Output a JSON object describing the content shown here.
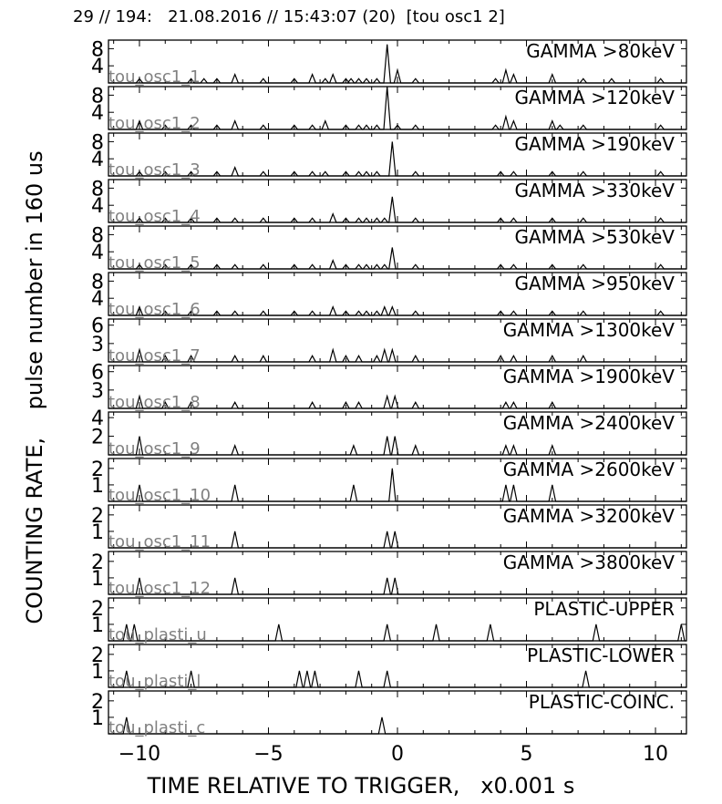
{
  "header": "29 // 194:   21.08.2016 // 15:43:07 (20)  [tou osc1 2]",
  "ylabel": "COUNTING RATE,    pulse number in 160 us",
  "xlabel": "TIME RELATIVE TO TRIGGER,   x0.001 s",
  "colors": {
    "line": "#000000",
    "channel_label": "#808080"
  },
  "chart_data": {
    "type": "line",
    "xlim": [
      -11.2,
      11.2
    ],
    "x_ticks": [
      -10,
      -5,
      0,
      5,
      10
    ],
    "x_tick_labels": [
      "−10",
      "−5",
      "0",
      "5",
      "10"
    ],
    "grid": false,
    "panels": [
      {
        "channel": "tou_osc1_1",
        "label": "GAMMA >80keV",
        "ylim": [
          0,
          10
        ],
        "y_ticks": [
          4,
          8
        ],
        "y_tick_labels": [
          "4",
          "8"
        ],
        "peaks": [
          [
            -10.0,
            1
          ],
          [
            -8.0,
            1
          ],
          [
            -7.5,
            1
          ],
          [
            -7.0,
            1
          ],
          [
            -6.3,
            2
          ],
          [
            -5.2,
            1
          ],
          [
            -4.0,
            1
          ],
          [
            -3.3,
            2
          ],
          [
            -2.8,
            1
          ],
          [
            -2.5,
            2
          ],
          [
            -2.0,
            1
          ],
          [
            -1.8,
            1
          ],
          [
            -1.5,
            1
          ],
          [
            -1.2,
            1
          ],
          [
            -0.8,
            1
          ],
          [
            -0.4,
            9
          ],
          [
            0.0,
            3
          ],
          [
            0.7,
            1
          ],
          [
            3.8,
            1
          ],
          [
            4.2,
            3
          ],
          [
            4.5,
            2
          ],
          [
            6.0,
            2
          ],
          [
            7.2,
            1
          ],
          [
            8.3,
            1
          ],
          [
            10.2,
            1
          ]
        ]
      },
      {
        "channel": "tou_osc1_2",
        "label": "GAMMA >120keV",
        "ylim": [
          0,
          10
        ],
        "y_ticks": [
          4,
          8
        ],
        "y_tick_labels": [
          "4",
          "8"
        ],
        "peaks": [
          [
            -10.0,
            2
          ],
          [
            -9.0,
            1
          ],
          [
            -8.0,
            1
          ],
          [
            -7.0,
            1
          ],
          [
            -6.3,
            2
          ],
          [
            -5.2,
            1
          ],
          [
            -4.0,
            1
          ],
          [
            -3.3,
            1
          ],
          [
            -2.8,
            2
          ],
          [
            -2.0,
            1
          ],
          [
            -1.5,
            1
          ],
          [
            -1.2,
            1
          ],
          [
            -0.8,
            1
          ],
          [
            -0.4,
            10
          ],
          [
            0.0,
            1
          ],
          [
            0.7,
            1
          ],
          [
            3.8,
            1
          ],
          [
            4.2,
            3
          ],
          [
            4.5,
            2
          ],
          [
            6.0,
            2
          ],
          [
            6.3,
            1
          ],
          [
            7.2,
            1
          ],
          [
            10.2,
            1
          ]
        ]
      },
      {
        "channel": "tou_osc1_3",
        "label": "GAMMA >190keV",
        "ylim": [
          0,
          10
        ],
        "y_ticks": [
          4,
          8
        ],
        "y_tick_labels": [
          "4",
          "8"
        ],
        "peaks": [
          [
            -10.0,
            1
          ],
          [
            -9.0,
            1
          ],
          [
            -8.0,
            1
          ],
          [
            -7.0,
            1
          ],
          [
            -6.3,
            2
          ],
          [
            -5.2,
            1
          ],
          [
            -4.0,
            1
          ],
          [
            -3.3,
            1
          ],
          [
            -2.8,
            1
          ],
          [
            -2.0,
            1
          ],
          [
            -1.5,
            1
          ],
          [
            -1.2,
            1
          ],
          [
            -0.8,
            1
          ],
          [
            -0.2,
            8
          ],
          [
            0.7,
            1
          ],
          [
            4.0,
            1
          ],
          [
            4.5,
            1
          ],
          [
            6.0,
            1
          ],
          [
            7.2,
            1
          ],
          [
            10.2,
            1
          ]
        ]
      },
      {
        "channel": "tou_osc1_4",
        "label": "GAMMA >330keV",
        "ylim": [
          0,
          10
        ],
        "y_ticks": [
          4,
          8
        ],
        "y_tick_labels": [
          "4",
          "8"
        ],
        "peaks": [
          [
            -10.0,
            1
          ],
          [
            -9.0,
            1
          ],
          [
            -8.0,
            1
          ],
          [
            -7.0,
            1
          ],
          [
            -6.3,
            1
          ],
          [
            -5.2,
            1
          ],
          [
            -4.0,
            1
          ],
          [
            -3.3,
            1
          ],
          [
            -2.5,
            2
          ],
          [
            -2.0,
            1
          ],
          [
            -1.5,
            1
          ],
          [
            -1.2,
            1
          ],
          [
            -0.8,
            1
          ],
          [
            -0.5,
            1
          ],
          [
            -0.2,
            6
          ],
          [
            0.7,
            1
          ],
          [
            4.0,
            1
          ],
          [
            4.5,
            1
          ],
          [
            6.0,
            1
          ],
          [
            7.2,
            1
          ],
          [
            10.2,
            1
          ]
        ]
      },
      {
        "channel": "tou_osc1_5",
        "label": "GAMMA >530keV",
        "ylim": [
          0,
          10
        ],
        "y_ticks": [
          4,
          8
        ],
        "y_tick_labels": [
          "4",
          "8"
        ],
        "peaks": [
          [
            -10.0,
            1
          ],
          [
            -9.0,
            1
          ],
          [
            -8.0,
            1
          ],
          [
            -7.0,
            1
          ],
          [
            -6.3,
            1
          ],
          [
            -5.2,
            1
          ],
          [
            -4.0,
            1
          ],
          [
            -3.3,
            1
          ],
          [
            -2.5,
            2
          ],
          [
            -2.0,
            1
          ],
          [
            -1.5,
            1
          ],
          [
            -1.2,
            1
          ],
          [
            -0.8,
            1
          ],
          [
            -0.5,
            1
          ],
          [
            -0.2,
            5
          ],
          [
            0.7,
            1
          ],
          [
            4.0,
            1
          ],
          [
            4.5,
            1
          ],
          [
            6.0,
            1
          ],
          [
            7.2,
            1
          ],
          [
            10.2,
            1
          ]
        ]
      },
      {
        "channel": "tou_osc1_6",
        "label": "GAMMA >950keV",
        "ylim": [
          0,
          10
        ],
        "y_ticks": [
          4,
          8
        ],
        "y_tick_labels": [
          "4",
          "8"
        ],
        "peaks": [
          [
            -10.0,
            2
          ],
          [
            -9.0,
            1
          ],
          [
            -8.0,
            1
          ],
          [
            -7.0,
            1
          ],
          [
            -6.3,
            1
          ],
          [
            -5.2,
            1
          ],
          [
            -4.0,
            1
          ],
          [
            -3.3,
            1
          ],
          [
            -2.5,
            2
          ],
          [
            -2.0,
            1
          ],
          [
            -1.5,
            1
          ],
          [
            -1.2,
            1
          ],
          [
            -0.8,
            1
          ],
          [
            -0.5,
            2
          ],
          [
            -0.2,
            2
          ],
          [
            0.7,
            1
          ],
          [
            4.0,
            1
          ],
          [
            4.5,
            1
          ],
          [
            6.0,
            1
          ],
          [
            7.2,
            1
          ],
          [
            10.2,
            1
          ]
        ]
      },
      {
        "channel": "tou_osc1_7",
        "label": "GAMMA >1300keV",
        "ylim": [
          0,
          7
        ],
        "y_ticks": [
          3,
          6
        ],
        "y_tick_labels": [
          "3",
          "6"
        ],
        "peaks": [
          [
            -10.0,
            2
          ],
          [
            -9.0,
            1
          ],
          [
            -8.0,
            1
          ],
          [
            -6.3,
            1
          ],
          [
            -5.2,
            1
          ],
          [
            -3.3,
            1
          ],
          [
            -2.5,
            2
          ],
          [
            -2.0,
            1
          ],
          [
            -1.5,
            1
          ],
          [
            -0.8,
            1
          ],
          [
            -0.5,
            2
          ],
          [
            -0.2,
            2
          ],
          [
            0.7,
            1
          ],
          [
            4.0,
            1
          ],
          [
            4.5,
            1
          ],
          [
            6.0,
            1
          ],
          [
            7.2,
            1
          ]
        ]
      },
      {
        "channel": "tou_osc1_8",
        "label": "GAMMA >1900keV",
        "ylim": [
          0,
          7
        ],
        "y_ticks": [
          3,
          6
        ],
        "y_tick_labels": [
          "3",
          "6"
        ],
        "peaks": [
          [
            -10.0,
            2
          ],
          [
            -9.0,
            1
          ],
          [
            -8.0,
            1
          ],
          [
            -6.3,
            1
          ],
          [
            -3.3,
            1
          ],
          [
            -2.0,
            1
          ],
          [
            -1.5,
            1
          ],
          [
            -0.4,
            2
          ],
          [
            -0.1,
            2
          ],
          [
            0.7,
            1
          ],
          [
            4.2,
            1
          ],
          [
            4.5,
            1
          ],
          [
            6.0,
            1
          ]
        ]
      },
      {
        "channel": "tou_osc1_9",
        "label": "GAMMA >2400keV",
        "ylim": [
          0,
          4.6
        ],
        "y_ticks": [
          2,
          4
        ],
        "y_tick_labels": [
          "2",
          "4"
        ],
        "peaks": [
          [
            -10.0,
            2
          ],
          [
            -6.3,
            1
          ],
          [
            -1.7,
            1
          ],
          [
            -0.4,
            2
          ],
          [
            -0.1,
            2
          ],
          [
            0.7,
            1
          ],
          [
            4.2,
            1
          ],
          [
            4.5,
            1
          ],
          [
            6.0,
            1
          ]
        ]
      },
      {
        "channel": "tou_osc1_10",
        "label": "GAMMA >2600keV",
        "ylim": [
          0,
          2.6
        ],
        "y_ticks": [
          1,
          2
        ],
        "y_tick_labels": [
          "1",
          "2"
        ],
        "peaks": [
          [
            -10.0,
            1
          ],
          [
            -6.3,
            1
          ],
          [
            -1.7,
            1
          ],
          [
            -0.2,
            2
          ],
          [
            4.2,
            1
          ],
          [
            4.5,
            1
          ],
          [
            6.0,
            1
          ]
        ]
      },
      {
        "channel": "tou_osc1_11",
        "label": "GAMMA >3200keV",
        "ylim": [
          0,
          2.6
        ],
        "y_ticks": [
          1,
          2
        ],
        "y_tick_labels": [
          "1",
          "2"
        ],
        "peaks": [
          [
            -6.3,
            1
          ],
          [
            -0.4,
            1
          ],
          [
            -0.1,
            1
          ]
        ]
      },
      {
        "channel": "tou_osc1_12",
        "label": "GAMMA >3800keV",
        "ylim": [
          0,
          2.6
        ],
        "y_ticks": [
          1,
          2
        ],
        "y_tick_labels": [
          "1",
          "2"
        ],
        "peaks": [
          [
            -10.0,
            1
          ],
          [
            -6.3,
            1
          ],
          [
            -0.4,
            1
          ],
          [
            -0.1,
            1
          ]
        ]
      },
      {
        "channel": "tou_plasti_u",
        "label": "PLASTIC-UPPER",
        "ylim": [
          0,
          2.6
        ],
        "y_ticks": [
          1,
          2
        ],
        "y_tick_labels": [
          "1",
          "2"
        ],
        "peaks": [
          [
            -10.5,
            1
          ],
          [
            -10.2,
            1
          ],
          [
            -4.6,
            1
          ],
          [
            -0.4,
            1
          ],
          [
            1.5,
            1
          ],
          [
            3.6,
            1
          ],
          [
            7.7,
            1
          ],
          [
            11.0,
            1
          ]
        ]
      },
      {
        "channel": "tou_plasti_l",
        "label": "PLASTIC-LOWER",
        "ylim": [
          0,
          2.6
        ],
        "y_ticks": [
          1,
          2
        ],
        "y_tick_labels": [
          "1",
          "2"
        ],
        "peaks": [
          [
            -10.5,
            1
          ],
          [
            -8.0,
            1
          ],
          [
            -3.8,
            1
          ],
          [
            -3.5,
            1
          ],
          [
            -3.2,
            1
          ],
          [
            -1.5,
            1
          ],
          [
            -0.4,
            1
          ],
          [
            7.3,
            1
          ]
        ]
      },
      {
        "channel": "tou_plasti_c",
        "label": "PLASTIC-COINC.",
        "ylim": [
          0,
          2.6
        ],
        "y_ticks": [
          1,
          2
        ],
        "y_tick_labels": [
          "1",
          "2"
        ],
        "peaks": [
          [
            -10.5,
            1
          ],
          [
            -0.6,
            1
          ]
        ]
      }
    ]
  }
}
